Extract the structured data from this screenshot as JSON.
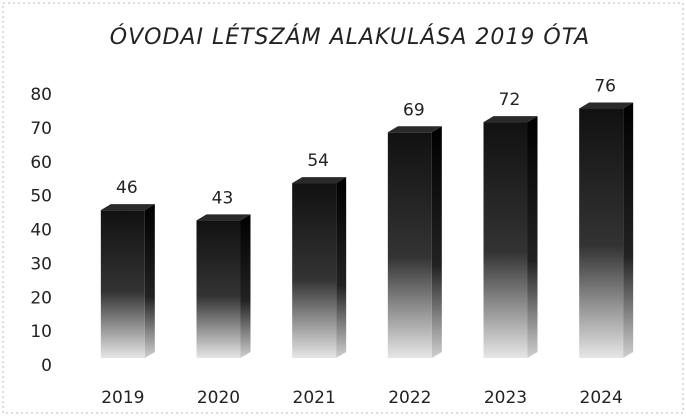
{
  "chart_data": {
    "type": "bar",
    "title": "ÓVODAI LÉTSZÁM ALAKULÁSA 2019 ÓTA",
    "categories": [
      "2019",
      "2020",
      "2021",
      "2022",
      "2023",
      "2024"
    ],
    "values": [
      46,
      43,
      54,
      69,
      72,
      76
    ],
    "color": "#1a1a1a",
    "ylim": [
      0,
      80
    ],
    "yticks": [
      0,
      10,
      20,
      30,
      40,
      50,
      60,
      70,
      80
    ],
    "grid": false
  }
}
